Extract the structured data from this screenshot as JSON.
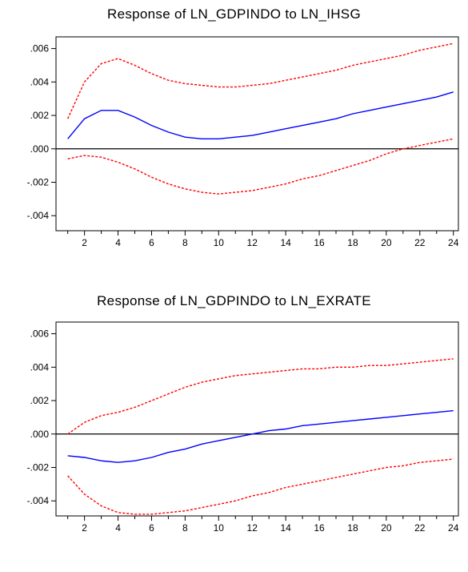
{
  "chart_data": [
    {
      "type": "line",
      "title": "Response of LN_GDPINDO to LN_IHSG",
      "xlabel": "",
      "ylabel": "",
      "x": [
        1,
        2,
        3,
        4,
        5,
        6,
        7,
        8,
        9,
        10,
        11,
        12,
        13,
        14,
        15,
        16,
        17,
        18,
        19,
        20,
        21,
        22,
        23,
        24
      ],
      "xticks": [
        2,
        4,
        6,
        8,
        10,
        12,
        14,
        16,
        18,
        20,
        22,
        24
      ],
      "xlim": [
        0.3,
        24.3
      ],
      "ylim": [
        -0.0049,
        0.0067
      ],
      "yticks": [
        0.006,
        0.004,
        0.002,
        0.0,
        -0.002,
        -0.004
      ],
      "ytick_labels": [
        ".006",
        ".004",
        ".002",
        ".000",
        "-.002",
        "-.004"
      ],
      "series": [
        {
          "role": "response",
          "color": "#0000ff",
          "style": "solid",
          "values": [
            0.0006,
            0.0018,
            0.0023,
            0.0023,
            0.0019,
            0.0014,
            0.001,
            0.0007,
            0.0006,
            0.0006,
            0.0007,
            0.0008,
            0.001,
            0.0012,
            0.0014,
            0.0016,
            0.0018,
            0.0021,
            0.0023,
            0.0025,
            0.0027,
            0.0029,
            0.0031,
            0.0034
          ]
        },
        {
          "role": "upper",
          "color": "#ff0000",
          "style": "dashed",
          "values": [
            0.0018,
            0.004,
            0.0051,
            0.0054,
            0.005,
            0.0045,
            0.0041,
            0.0039,
            0.0038,
            0.0037,
            0.0037,
            0.0038,
            0.0039,
            0.0041,
            0.0043,
            0.0045,
            0.0047,
            0.005,
            0.0052,
            0.0054,
            0.0056,
            0.0059,
            0.0061,
            0.0063
          ]
        },
        {
          "role": "lower",
          "color": "#ff0000",
          "style": "dashed",
          "values": [
            -0.0006,
            -0.0004,
            -0.0005,
            -0.0008,
            -0.0012,
            -0.0017,
            -0.0021,
            -0.0024,
            -0.0026,
            -0.0027,
            -0.0026,
            -0.0025,
            -0.0023,
            -0.0021,
            -0.0018,
            -0.0016,
            -0.0013,
            -0.001,
            -0.0007,
            -0.0003,
            0.0,
            0.0002,
            0.0004,
            0.0006
          ]
        }
      ]
    },
    {
      "type": "line",
      "title": "Response of LN_GDPINDO to LN_EXRATE",
      "xlabel": "",
      "ylabel": "",
      "x": [
        1,
        2,
        3,
        4,
        5,
        6,
        7,
        8,
        9,
        10,
        11,
        12,
        13,
        14,
        15,
        16,
        17,
        18,
        19,
        20,
        21,
        22,
        23,
        24
      ],
      "xticks": [
        2,
        4,
        6,
        8,
        10,
        12,
        14,
        16,
        18,
        20,
        22,
        24
      ],
      "xlim": [
        0.3,
        24.3
      ],
      "ylim": [
        -0.0049,
        0.0067
      ],
      "yticks": [
        0.006,
        0.004,
        0.002,
        0.0,
        -0.002,
        -0.004
      ],
      "ytick_labels": [
        ".006",
        ".004",
        ".002",
        ".000",
        "-.002",
        "-.004"
      ],
      "series": [
        {
          "role": "response",
          "color": "#0000ff",
          "style": "solid",
          "values": [
            -0.0013,
            -0.0014,
            -0.0016,
            -0.0017,
            -0.0016,
            -0.0014,
            -0.0011,
            -0.0009,
            -0.0006,
            -0.0004,
            -0.0002,
            0.0,
            0.0002,
            0.0003,
            0.0005,
            0.0006,
            0.0007,
            0.0008,
            0.0009,
            0.001,
            0.0011,
            0.0012,
            0.0013,
            0.0014
          ]
        },
        {
          "role": "upper",
          "color": "#ff0000",
          "style": "dashed",
          "values": [
            0.0,
            0.0007,
            0.0011,
            0.0013,
            0.0016,
            0.002,
            0.0024,
            0.0028,
            0.0031,
            0.0033,
            0.0035,
            0.0036,
            0.0037,
            0.0038,
            0.0039,
            0.0039,
            0.004,
            0.004,
            0.0041,
            0.0041,
            0.0042,
            0.0043,
            0.0044,
            0.0045
          ]
        },
        {
          "role": "lower",
          "color": "#ff0000",
          "style": "dashed",
          "values": [
            -0.0025,
            -0.0036,
            -0.0043,
            -0.0047,
            -0.0048,
            -0.0048,
            -0.0047,
            -0.0046,
            -0.0044,
            -0.0042,
            -0.004,
            -0.0037,
            -0.0035,
            -0.0032,
            -0.003,
            -0.0028,
            -0.0026,
            -0.0024,
            -0.0022,
            -0.002,
            -0.0019,
            -0.0017,
            -0.0016,
            -0.0015
          ]
        }
      ]
    }
  ]
}
